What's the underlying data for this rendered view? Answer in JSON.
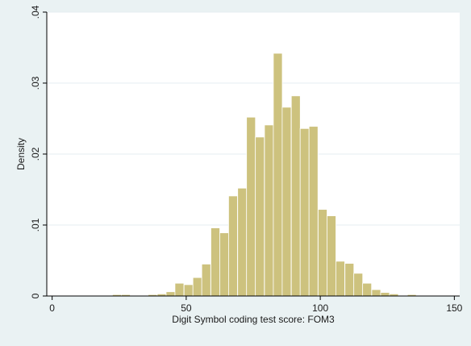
{
  "chart_data": {
    "type": "bar",
    "xlabel": "Digit Symbol coding test score: FOM3",
    "ylabel": "Density",
    "xlim": [
      -2,
      152
    ],
    "ylim": [
      0,
      0.04
    ],
    "x_ticks": [
      {
        "value": 0,
        "label": "0"
      },
      {
        "value": 50,
        "label": "50"
      },
      {
        "value": 100,
        "label": "100"
      },
      {
        "value": 150,
        "label": "150"
      }
    ],
    "y_ticks": [
      {
        "value": 0,
        "label": "0"
      },
      {
        "value": 0.01,
        "label": ".01"
      },
      {
        "value": 0.02,
        "label": ".02"
      },
      {
        "value": 0.03,
        "label": ".03"
      },
      {
        "value": 0.04,
        "label": ".04"
      }
    ],
    "grid": "horizontal",
    "bin_width": 3.33,
    "bins": [
      {
        "start": 22.5,
        "density": 0.0002
      },
      {
        "start": 25.8,
        "density": 0.0002
      },
      {
        "start": 29.2,
        "density": 0.0001
      },
      {
        "start": 32.5,
        "density": 0.0001
      },
      {
        "start": 35.8,
        "density": 0.0002
      },
      {
        "start": 39.2,
        "density": 0.0003
      },
      {
        "start": 42.5,
        "density": 0.0006
      },
      {
        "start": 45.8,
        "density": 0.0018
      },
      {
        "start": 49.2,
        "density": 0.0016
      },
      {
        "start": 52.5,
        "density": 0.0026
      },
      {
        "start": 55.8,
        "density": 0.0045
      },
      {
        "start": 59.2,
        "density": 0.0096
      },
      {
        "start": 62.5,
        "density": 0.0089
      },
      {
        "start": 65.8,
        "density": 0.0141
      },
      {
        "start": 69.2,
        "density": 0.0152
      },
      {
        "start": 72.5,
        "density": 0.0252
      },
      {
        "start": 75.8,
        "density": 0.0224
      },
      {
        "start": 79.2,
        "density": 0.0241
      },
      {
        "start": 82.5,
        "density": 0.0342
      },
      {
        "start": 85.8,
        "density": 0.0266
      },
      {
        "start": 89.2,
        "density": 0.0282
      },
      {
        "start": 92.5,
        "density": 0.0236
      },
      {
        "start": 95.8,
        "density": 0.0239
      },
      {
        "start": 99.2,
        "density": 0.0122
      },
      {
        "start": 102.5,
        "density": 0.0113
      },
      {
        "start": 105.8,
        "density": 0.0049
      },
      {
        "start": 109.2,
        "density": 0.0046
      },
      {
        "start": 112.5,
        "density": 0.0032
      },
      {
        "start": 115.8,
        "density": 0.0018
      },
      {
        "start": 119.2,
        "density": 0.0009
      },
      {
        "start": 122.5,
        "density": 0.0005
      },
      {
        "start": 125.8,
        "density": 0.0003
      },
      {
        "start": 129.2,
        "density": 0.0001
      },
      {
        "start": 132.5,
        "density": 0.0002
      },
      {
        "start": 135.8,
        "density": 0.0001
      }
    ],
    "colors": {
      "bar_fill": "#cdc27e",
      "bar_stroke": "#ffffff",
      "plot_background": "#ffffff",
      "outer_background": "#eaf2f3",
      "grid": "#e6eef0",
      "axis": "#000000"
    }
  }
}
